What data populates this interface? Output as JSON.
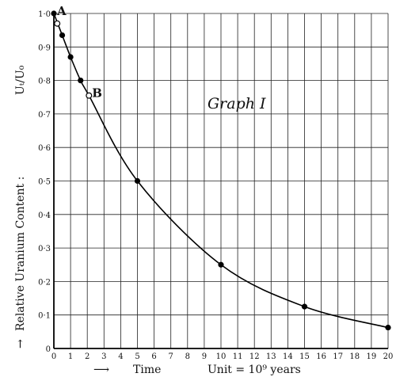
{
  "chart_data": {
    "type": "line",
    "title": "Graph I",
    "ylabel_main": "Relative Uranium Content :",
    "ylabel_ratio": "Uₜ/U₀",
    "ylabel_arrow": "→",
    "xlabel_arrow": "⟶",
    "xlabel_main": "Time",
    "xlabel_unit": "Unit = 10⁹ years",
    "xlim": [
      0,
      20
    ],
    "ylim": [
      0,
      1.0
    ],
    "grid": true,
    "x_ticks": [
      0,
      1,
      2,
      3,
      4,
      5,
      6,
      7,
      8,
      9,
      10,
      11,
      12,
      13,
      14,
      15,
      16,
      17,
      18,
      19,
      20
    ],
    "x_tick_labels": [
      "0",
      "1",
      "2",
      "3",
      "4",
      "5",
      "6",
      "7",
      "8",
      "9",
      "10",
      "11",
      "12",
      "13",
      "14",
      "15",
      "16",
      "17",
      "18",
      "19",
      "20"
    ],
    "y_ticks": [
      0,
      0.1,
      0.2,
      0.3,
      0.4,
      0.5,
      0.6,
      0.7,
      0.8,
      0.9,
      1.0
    ],
    "y_tick_labels": [
      "0",
      "0·1",
      "0·2",
      "0·3",
      "0·4",
      "0·5",
      "0·6",
      "0·7",
      "0·8",
      "0·9",
      "1·0"
    ],
    "series": [
      {
        "x": [
          0,
          0.5,
          1,
          1.6,
          2.1,
          5,
          10,
          15,
          20
        ],
        "y": [
          1.0,
          0.935,
          0.87,
          0.8,
          0.755,
          0.5,
          0.25,
          0.125,
          0.0625
        ]
      }
    ],
    "open_points": [
      {
        "x": 0.2,
        "y": 0.97
      },
      {
        "x": 2.1,
        "y": 0.755
      }
    ],
    "annotations": [
      {
        "text": "A",
        "x": 0,
        "y": 1.0
      },
      {
        "text": "B",
        "x": 2.1,
        "y": 0.755
      }
    ]
  }
}
